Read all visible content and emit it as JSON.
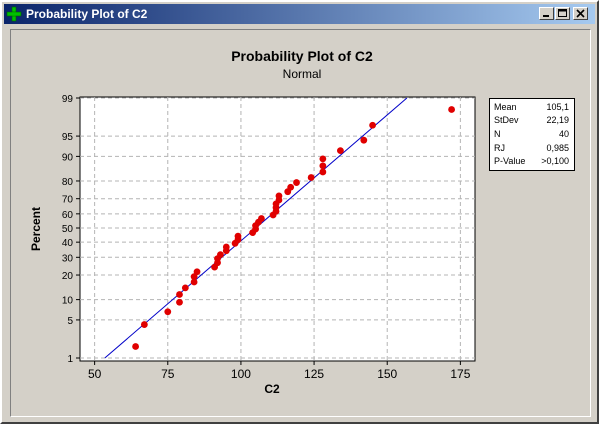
{
  "window": {
    "title": "Probability Plot of C2",
    "icon": "plus-icon",
    "controls": [
      "minimize-icon",
      "maximize-icon",
      "close-icon"
    ]
  },
  "colors": {
    "titlebar_start": "#0a246a",
    "titlebar_end": "#a6caf0",
    "points": "#e00000",
    "fit_line": "#0000c8",
    "grid": "#b4b4b4"
  },
  "stats": [
    {
      "label": "Mean",
      "value": "105,1"
    },
    {
      "label": "StDev",
      "value": "22,19"
    },
    {
      "label": "N",
      "value": "40"
    },
    {
      "label": "RJ",
      "value": "0,985"
    },
    {
      "label": "P-Value",
      "value": ">0,100"
    }
  ],
  "chart_data": {
    "type": "scatter",
    "title": "Probability Plot of C2",
    "subtitle": "Normal",
    "xlabel": "C2",
    "ylabel": "Percent",
    "xlim": [
      45,
      180
    ],
    "ylim": [
      1,
      99
    ],
    "yscale": "normal-probability",
    "grid": true,
    "xticks": [
      50,
      75,
      100,
      125,
      150,
      175
    ],
    "yticks": [
      1,
      5,
      10,
      20,
      30,
      40,
      50,
      60,
      70,
      80,
      90,
      95,
      99
    ],
    "fit_line": {
      "mean": 105.1,
      "stdev": 22.19
    },
    "points": [
      {
        "x": 64,
        "y": 1.7
      },
      {
        "x": 67,
        "y": 4.2
      },
      {
        "x": 75,
        "y": 6.7
      },
      {
        "x": 79,
        "y": 9.2
      },
      {
        "x": 79,
        "y": 11.7
      },
      {
        "x": 81,
        "y": 14.2
      },
      {
        "x": 84,
        "y": 16.7
      },
      {
        "x": 84,
        "y": 19.2
      },
      {
        "x": 85,
        "y": 21.7
      },
      {
        "x": 91,
        "y": 24.2
      },
      {
        "x": 92,
        "y": 26.7
      },
      {
        "x": 92,
        "y": 29.2
      },
      {
        "x": 93,
        "y": 31.7
      },
      {
        "x": 95,
        "y": 34.2
      },
      {
        "x": 95,
        "y": 36.7
      },
      {
        "x": 98,
        "y": 39.2
      },
      {
        "x": 99,
        "y": 41.7
      },
      {
        "x": 99,
        "y": 44.2
      },
      {
        "x": 104,
        "y": 46.7
      },
      {
        "x": 105,
        "y": 49.2
      },
      {
        "x": 105,
        "y": 51.7
      },
      {
        "x": 106,
        "y": 54.2
      },
      {
        "x": 107,
        "y": 56.7
      },
      {
        "x": 111,
        "y": 59.2
      },
      {
        "x": 112,
        "y": 61.7
      },
      {
        "x": 112,
        "y": 64.2
      },
      {
        "x": 112,
        "y": 66.7
      },
      {
        "x": 113,
        "y": 69.2
      },
      {
        "x": 113,
        "y": 71.7
      },
      {
        "x": 116,
        "y": 74.2
      },
      {
        "x": 117,
        "y": 76.7
      },
      {
        "x": 119,
        "y": 79.2
      },
      {
        "x": 124,
        "y": 81.7
      },
      {
        "x": 128,
        "y": 84.2
      },
      {
        "x": 128,
        "y": 86.7
      },
      {
        "x": 128,
        "y": 89.2
      },
      {
        "x": 134,
        "y": 91.7
      },
      {
        "x": 142,
        "y": 94.2
      },
      {
        "x": 145,
        "y": 96.7
      },
      {
        "x": 172,
        "y": 98.3
      }
    ]
  }
}
